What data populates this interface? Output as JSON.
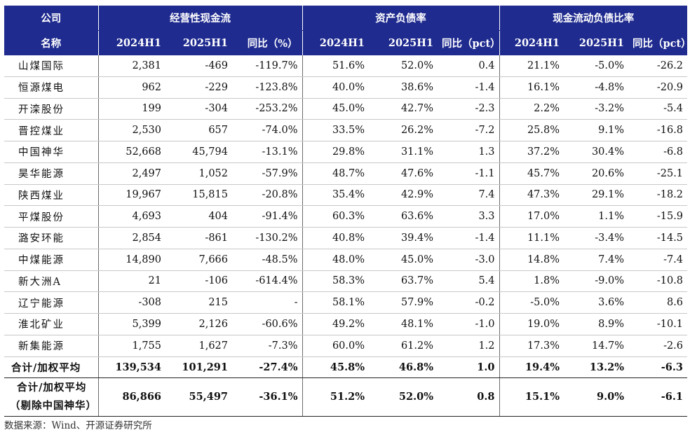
{
  "header": {
    "company_line1": "公司",
    "company_line2": "名称",
    "groups": [
      "经营性现金流",
      "资产负债率",
      "现金流动负债比率"
    ],
    "sub": [
      "2024H1",
      "2025H1",
      "同比（%）",
      "2024H1",
      "2025H1",
      "同比（pct）",
      "2024H1",
      "2025H1",
      "同比（pct）"
    ]
  },
  "rows": [
    {
      "name": "山煤国际",
      "v": [
        "2,381",
        "-469",
        "-119.7%",
        "51.6%",
        "52.0%",
        "0.4",
        "21.1%",
        "-5.0%",
        "-26.2"
      ]
    },
    {
      "name": "恒源煤电",
      "v": [
        "962",
        "-229",
        "-123.8%",
        "40.0%",
        "38.6%",
        "-1.4",
        "16.1%",
        "-4.8%",
        "-20.9"
      ]
    },
    {
      "name": "开滦股份",
      "v": [
        "199",
        "-304",
        "-253.2%",
        "45.0%",
        "42.7%",
        "-2.3",
        "2.2%",
        "-3.2%",
        "-5.4"
      ]
    },
    {
      "name": "晋控煤业",
      "v": [
        "2,530",
        "657",
        "-74.0%",
        "33.5%",
        "26.2%",
        "-7.2",
        "25.8%",
        "9.1%",
        "-16.8"
      ]
    },
    {
      "name": "中国神华",
      "v": [
        "52,668",
        "45,794",
        "-13.1%",
        "29.8%",
        "31.1%",
        "1.3",
        "37.2%",
        "30.4%",
        "-6.8"
      ]
    },
    {
      "name": "昊华能源",
      "v": [
        "2,497",
        "1,052",
        "-57.9%",
        "48.7%",
        "47.6%",
        "-1.1",
        "45.7%",
        "20.6%",
        "-25.1"
      ]
    },
    {
      "name": "陕西煤业",
      "v": [
        "19,967",
        "15,815",
        "-20.8%",
        "35.4%",
        "42.9%",
        "7.4",
        "47.3%",
        "29.1%",
        "-18.2"
      ]
    },
    {
      "name": "平煤股份",
      "v": [
        "4,693",
        "404",
        "-91.4%",
        "60.3%",
        "63.6%",
        "3.3",
        "17.0%",
        "1.1%",
        "-15.9"
      ]
    },
    {
      "name": "潞安环能",
      "v": [
        "2,854",
        "-861",
        "-130.2%",
        "40.8%",
        "39.4%",
        "-1.4",
        "11.1%",
        "-3.4%",
        "-14.5"
      ]
    },
    {
      "name": "中煤能源",
      "v": [
        "14,890",
        "7,666",
        "-48.5%",
        "48.0%",
        "45.0%",
        "-3.0",
        "14.8%",
        "7.4%",
        "-7.4"
      ]
    },
    {
      "name": "新大洲A",
      "v": [
        "21",
        "-106",
        "-614.4%",
        "58.3%",
        "63.7%",
        "5.4",
        "1.8%",
        "-9.0%",
        "-10.8"
      ]
    },
    {
      "name": "辽宁能源",
      "v": [
        "-308",
        "215",
        "-",
        "58.1%",
        "57.9%",
        "-0.2",
        "-5.0%",
        "3.6%",
        "8.6"
      ]
    },
    {
      "name": "淮北矿业",
      "v": [
        "5,399",
        "2,126",
        "-60.6%",
        "49.2%",
        "48.1%",
        "-1.0",
        "19.0%",
        "8.9%",
        "-10.1"
      ]
    },
    {
      "name": "新集能源",
      "v": [
        "1,755",
        "1,627",
        "-7.3%",
        "60.0%",
        "61.2%",
        "1.2",
        "17.3%",
        "14.7%",
        "-2.6"
      ]
    }
  ],
  "total": {
    "name": "合计/加权平均",
    "v": [
      "139,534",
      "101,291",
      "-27.4%",
      "45.8%",
      "46.8%",
      "1.0",
      "19.4%",
      "13.2%",
      "-6.3"
    ]
  },
  "total_ex": {
    "name1": "合计/加权平均",
    "name2": "（剔除中国神华）",
    "v": [
      "86,866",
      "55,497",
      "-36.1%",
      "51.2%",
      "52.0%",
      "0.8",
      "15.1%",
      "9.0%",
      "-6.1"
    ]
  },
  "source": "数据来源：Wind、开源证券研究所"
}
